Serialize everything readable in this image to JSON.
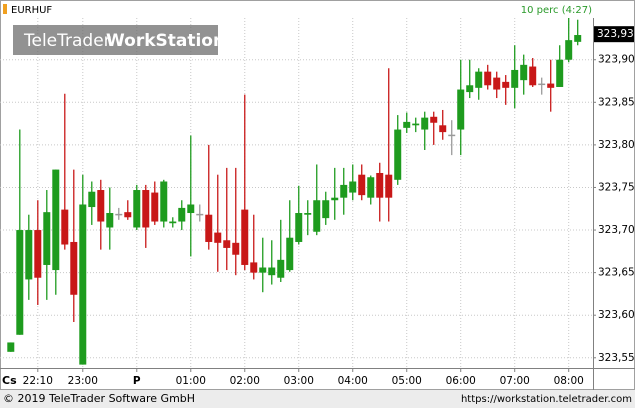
{
  "chart_data": {
    "type": "candlestick",
    "title": "EURHUF",
    "interval_label": "10 perc (4:27)",
    "watermark": {
      "brand": "TeleTrader",
      "product": "WorkStation"
    },
    "last_price": {
      "value": 323.93,
      "label": "323,93"
    },
    "day_label": "Cs",
    "footer": {
      "copyright": "© 2019 TeleTrader Software GmbH",
      "url": "https://workstation.teletrader.com"
    },
    "colors": {
      "up": "#1e9b1e",
      "down": "#c81818",
      "flat": "#9a9a9a"
    },
    "grid": true,
    "xlim": [
      1288,
      1947
    ],
    "xticks": [
      {
        "value": 1330,
        "label": "22:10"
      },
      {
        "value": 1380,
        "label": "23:00"
      },
      {
        "value": 1440,
        "label": "P"
      },
      {
        "value": 1500,
        "label": "01:00"
      },
      {
        "value": 1560,
        "label": "02:00"
      },
      {
        "value": 1620,
        "label": "03:00"
      },
      {
        "value": 1680,
        "label": "04:00"
      },
      {
        "value": 1740,
        "label": "05:00"
      },
      {
        "value": 1800,
        "label": "06:00"
      },
      {
        "value": 1860,
        "label": "07:00"
      },
      {
        "value": 1920,
        "label": "08:00"
      }
    ],
    "ylim": [
      323.538,
      323.949
    ],
    "yticks": [
      {
        "value": 323.55,
        "label": "323,55"
      },
      {
        "value": 323.6,
        "label": "323,60"
      },
      {
        "value": 323.65,
        "label": "323,65"
      },
      {
        "value": 323.7,
        "label": "323,70"
      },
      {
        "value": 323.75,
        "label": "323,75"
      },
      {
        "value": 323.8,
        "label": "323,80"
      },
      {
        "value": 323.85,
        "label": "323,85"
      },
      {
        "value": 323.9,
        "label": "323,90"
      }
    ],
    "x": [
      1300,
      1310,
      1320,
      1330,
      1340,
      1350,
      1360,
      1370,
      1380,
      1390,
      1400,
      1410,
      1420,
      1430,
      1440,
      1450,
      1460,
      1470,
      1480,
      1490,
      1500,
      1510,
      1520,
      1530,
      1540,
      1550,
      1560,
      1570,
      1580,
      1590,
      1600,
      1610,
      1620,
      1630,
      1640,
      1650,
      1660,
      1670,
      1680,
      1690,
      1700,
      1710,
      1720,
      1730,
      1740,
      1750,
      1760,
      1770,
      1780,
      1790,
      1800,
      1810,
      1820,
      1830,
      1840,
      1850,
      1860,
      1870,
      1880,
      1890,
      1900,
      1910,
      1920,
      1930
    ],
    "open": [
      323.557,
      323.577,
      323.642,
      323.7,
      323.659,
      323.653,
      323.724,
      323.686,
      323.542,
      323.727,
      323.747,
      323.703,
      323.719,
      323.721,
      323.703,
      323.747,
      323.744,
      323.71,
      323.708,
      323.71,
      323.72,
      323.719,
      323.718,
      323.697,
      323.688,
      323.685,
      323.724,
      323.662,
      323.65,
      323.647,
      323.644,
      323.653,
      323.686,
      323.718,
      323.698,
      323.714,
      323.735,
      323.738,
      323.744,
      323.765,
      323.738,
      323.767,
      323.765,
      323.759,
      323.82,
      323.823,
      323.818,
      323.833,
      323.823,
      323.812,
      323.818,
      323.862,
      323.867,
      323.886,
      323.879,
      323.874,
      323.867,
      323.876,
      323.892,
      323.872,
      323.872,
      323.868,
      323.9,
      323.921
    ],
    "high": [
      323.568,
      323.818,
      323.718,
      323.735,
      323.747,
      323.771,
      323.86,
      323.771,
      323.765,
      323.757,
      323.759,
      323.75,
      323.726,
      323.735,
      323.753,
      323.753,
      323.757,
      323.759,
      323.715,
      323.735,
      323.811,
      323.73,
      323.8,
      323.765,
      323.773,
      323.773,
      323.859,
      323.718,
      323.691,
      323.688,
      323.712,
      323.735,
      323.752,
      323.735,
      323.777,
      323.745,
      323.773,
      323.773,
      323.777,
      323.777,
      323.764,
      323.779,
      323.89,
      323.835,
      323.838,
      323.832,
      323.839,
      323.839,
      323.841,
      323.829,
      323.9,
      323.9,
      323.89,
      323.894,
      323.886,
      323.882,
      323.917,
      323.906,
      323.902,
      323.879,
      323.9,
      323.917,
      323.949,
      323.947
    ],
    "low": [
      323.557,
      323.577,
      323.618,
      323.612,
      323.618,
      323.624,
      323.677,
      323.592,
      323.542,
      323.706,
      323.677,
      323.677,
      323.712,
      323.712,
      323.7,
      323.679,
      323.706,
      323.703,
      323.703,
      323.7,
      323.669,
      323.71,
      323.677,
      323.651,
      323.653,
      323.647,
      323.653,
      323.642,
      323.627,
      323.636,
      323.639,
      323.651,
      323.683,
      323.694,
      323.694,
      323.706,
      323.712,
      323.718,
      323.735,
      323.735,
      323.73,
      323.71,
      323.71,
      323.753,
      323.814,
      323.815,
      323.794,
      323.8,
      323.806,
      323.788,
      323.788,
      323.855,
      323.853,
      323.865,
      323.855,
      323.847,
      323.843,
      323.859,
      323.868,
      323.859,
      323.839,
      323.868,
      323.897,
      323.917
    ],
    "close": [
      323.568,
      323.7,
      323.7,
      323.644,
      323.721,
      323.771,
      323.683,
      323.624,
      323.73,
      323.745,
      323.71,
      323.72,
      323.719,
      323.715,
      323.747,
      323.703,
      323.71,
      323.757,
      323.71,
      323.726,
      323.73,
      323.719,
      323.686,
      323.685,
      323.679,
      323.671,
      323.659,
      323.65,
      323.656,
      323.656,
      323.665,
      323.691,
      323.72,
      323.72,
      323.735,
      323.735,
      323.738,
      323.753,
      323.757,
      323.741,
      323.762,
      323.738,
      323.738,
      323.818,
      323.827,
      323.825,
      323.832,
      323.826,
      323.815,
      323.812,
      323.865,
      323.87,
      323.886,
      323.87,
      323.865,
      323.867,
      323.888,
      323.894,
      323.87,
      323.872,
      323.867,
      323.9,
      323.923,
      323.929
    ]
  }
}
